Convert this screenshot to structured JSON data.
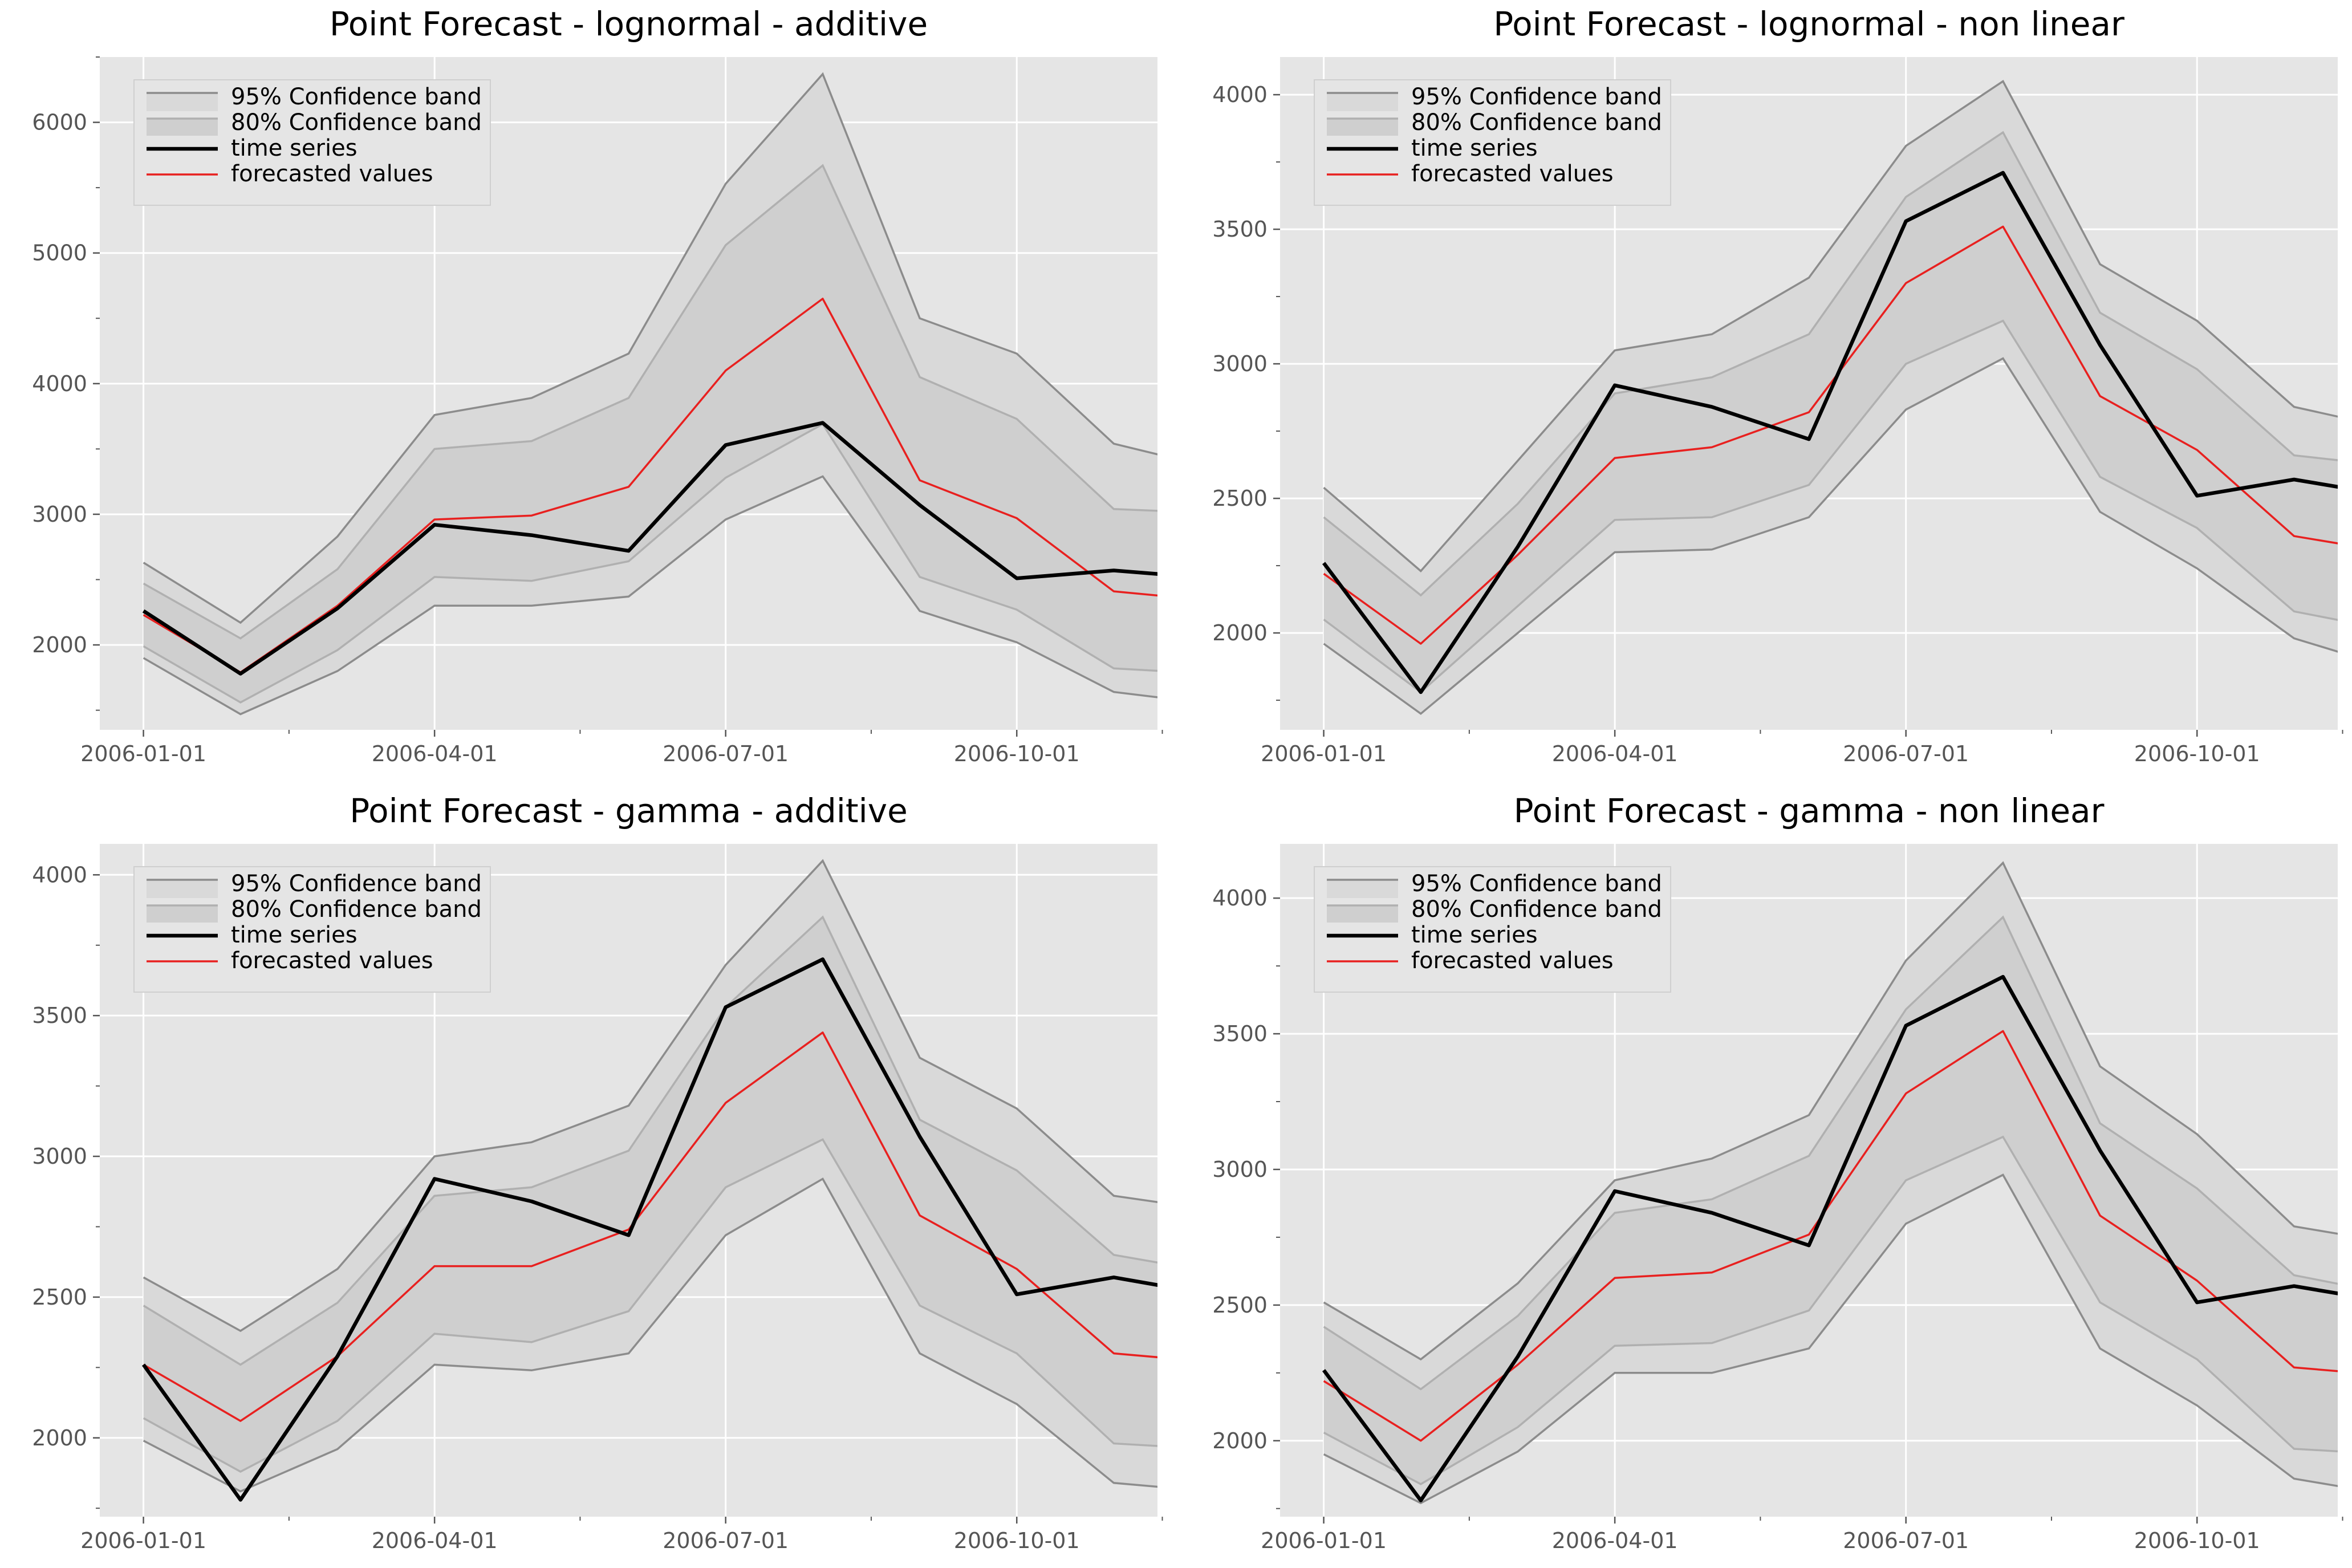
{
  "colors": {
    "panel_bg": "#e5e5e5",
    "grid": "#ffffff",
    "band95_fill": "#d9d9d9",
    "band95_edge": "#8c8c8c",
    "band80_fill": "#cfcfcf",
    "band80_edge": "#b0b0b0",
    "time_series": "#000000",
    "forecast": "#e8201f",
    "tick_text": "#555555"
  },
  "chart_data": [
    {
      "type": "line",
      "title": "Point Forecast - lognormal - additive",
      "x": [
        "2006-01-01",
        "2006-02-01",
        "2006-03-01",
        "2006-04-01",
        "2006-05-01",
        "2006-06-01",
        "2006-07-01",
        "2006-08-01",
        "2006-09-01",
        "2006-10-01",
        "2006-11-01",
        "2006-12-01"
      ],
      "xticks": [
        "2006-01-01",
        "2006-04-01",
        "2006-07-01",
        "2006-10-01"
      ],
      "ylim": [
        1350,
        6500
      ],
      "yticks": [
        2000,
        3000,
        4000,
        5000,
        6000
      ],
      "legend": [
        "95% Confidence band",
        "80% Confidence band",
        "time series",
        "forecasted values"
      ],
      "legend_position": "top-left",
      "grid": true,
      "series": [
        {
          "name": "time series",
          "values": [
            2260,
            1780,
            2280,
            2920,
            2840,
            2720,
            3530,
            3700,
            3070,
            2510,
            2570,
            2510
          ]
        },
        {
          "name": "forecasted values",
          "values": [
            2230,
            1790,
            2300,
            2960,
            2990,
            3210,
            4100,
            4650,
            3260,
            2970,
            2410,
            2340
          ]
        },
        {
          "name": "95% Confidence band",
          "upper": [
            2630,
            2170,
            2830,
            3760,
            3890,
            4230,
            5530,
            6370,
            4500,
            4230,
            3540,
            3360
          ],
          "lower": [
            1900,
            1470,
            1800,
            2300,
            2300,
            2370,
            2960,
            3290,
            2260,
            2020,
            1640,
            1550
          ]
        },
        {
          "name": "80% Confidence band",
          "upper": [
            2470,
            2050,
            2580,
            3500,
            3560,
            3890,
            5060,
            5670,
            4050,
            3730,
            3040,
            3010
          ],
          "lower": [
            1990,
            1560,
            1960,
            2520,
            2490,
            2640,
            3280,
            3690,
            2520,
            2270,
            1820,
            1780
          ]
        }
      ]
    },
    {
      "type": "line",
      "title": "Point Forecast - lognormal - non linear",
      "x": [
        "2006-01-01",
        "2006-02-01",
        "2006-03-01",
        "2006-04-01",
        "2006-05-01",
        "2006-06-01",
        "2006-07-01",
        "2006-08-01",
        "2006-09-01",
        "2006-10-01",
        "2006-11-01",
        "2006-12-01"
      ],
      "xticks": [
        "2006-01-01",
        "2006-04-01",
        "2006-07-01",
        "2006-10-01"
      ],
      "ylim": [
        1640,
        4140
      ],
      "yticks": [
        2000,
        2500,
        3000,
        3500,
        4000
      ],
      "legend": [
        "95% Confidence band",
        "80% Confidence band",
        "time series",
        "forecasted values"
      ],
      "legend_position": "top-left",
      "grid": true,
      "series": [
        {
          "name": "time series",
          "values": [
            2260,
            1780,
            2320,
            2920,
            2840,
            2720,
            3530,
            3710,
            3070,
            2510,
            2570,
            2510
          ]
        },
        {
          "name": "forecasted values",
          "values": [
            2220,
            1960,
            2290,
            2650,
            2690,
            2820,
            3300,
            3510,
            2880,
            2680,
            2360,
            2300
          ]
        },
        {
          "name": "95% Confidence band",
          "upper": [
            2540,
            2230,
            2640,
            3050,
            3110,
            3320,
            3810,
            4050,
            3370,
            3160,
            2840,
            2760
          ],
          "lower": [
            1960,
            1700,
            2000,
            2300,
            2310,
            2430,
            2830,
            3020,
            2450,
            2240,
            1980,
            1870
          ]
        },
        {
          "name": "80% Confidence band",
          "upper": [
            2430,
            2140,
            2480,
            2890,
            2950,
            3110,
            3620,
            3860,
            3190,
            2980,
            2660,
            2620
          ],
          "lower": [
            2050,
            1780,
            2100,
            2420,
            2430,
            2550,
            3000,
            3160,
            2580,
            2390,
            2080,
            2010
          ]
        }
      ]
    },
    {
      "type": "line",
      "title": "Point Forecast - gamma - additive",
      "x": [
        "2006-01-01",
        "2006-02-01",
        "2006-03-01",
        "2006-04-01",
        "2006-05-01",
        "2006-06-01",
        "2006-07-01",
        "2006-08-01",
        "2006-09-01",
        "2006-10-01",
        "2006-11-01",
        "2006-12-01"
      ],
      "xticks": [
        "2006-01-01",
        "2006-04-01",
        "2006-07-01",
        "2006-10-01"
      ],
      "ylim": [
        1720,
        4110
      ],
      "yticks": [
        2000,
        2500,
        3000,
        3500,
        4000
      ],
      "legend": [
        "95% Confidence band",
        "80% Confidence band",
        "time series",
        "forecasted values"
      ],
      "legend_position": "top-left",
      "grid": true,
      "series": [
        {
          "name": "time series",
          "values": [
            2260,
            1780,
            2290,
            2920,
            2840,
            2720,
            3530,
            3700,
            3070,
            2510,
            2570,
            2510
          ]
        },
        {
          "name": "forecasted values",
          "values": [
            2260,
            2060,
            2290,
            2610,
            2610,
            2740,
            3190,
            3440,
            2790,
            2600,
            2300,
            2270
          ]
        },
        {
          "name": "95% Confidence band",
          "upper": [
            2570,
            2380,
            2600,
            3000,
            3050,
            3180,
            3680,
            4050,
            3350,
            3170,
            2860,
            2810
          ],
          "lower": [
            1990,
            1810,
            1960,
            2260,
            2240,
            2300,
            2720,
            2920,
            2300,
            2120,
            1840,
            1810
          ]
        },
        {
          "name": "80% Confidence band",
          "upper": [
            2470,
            2260,
            2480,
            2860,
            2890,
            3020,
            3530,
            3850,
            3130,
            2950,
            2650,
            2590
          ],
          "lower": [
            2070,
            1880,
            2060,
            2370,
            2340,
            2450,
            2890,
            3060,
            2470,
            2300,
            1980,
            1960
          ]
        }
      ]
    },
    {
      "type": "line",
      "title": "Point Forecast - gamma - non linear",
      "x": [
        "2006-01-01",
        "2006-02-01",
        "2006-03-01",
        "2006-04-01",
        "2006-05-01",
        "2006-06-01",
        "2006-07-01",
        "2006-08-01",
        "2006-09-01",
        "2006-10-01",
        "2006-11-01",
        "2006-12-01"
      ],
      "xticks": [
        "2006-01-01",
        "2006-04-01",
        "2006-07-01",
        "2006-10-01"
      ],
      "ylim": [
        1720,
        4200
      ],
      "yticks": [
        2000,
        2500,
        3000,
        3500,
        4000
      ],
      "legend": [
        "95% Confidence band",
        "80% Confidence band",
        "time series",
        "forecasted values"
      ],
      "legend_position": "top-left",
      "grid": true,
      "series": [
        {
          "name": "time series",
          "values": [
            2260,
            1780,
            2310,
            2920,
            2840,
            2720,
            3530,
            3710,
            3070,
            2510,
            2570,
            2510
          ]
        },
        {
          "name": "forecasted values",
          "values": [
            2220,
            2000,
            2280,
            2600,
            2620,
            2760,
            3280,
            3510,
            2830,
            2590,
            2270,
            2240
          ]
        },
        {
          "name": "95% Confidence band",
          "upper": [
            2510,
            2300,
            2580,
            2960,
            3040,
            3200,
            3770,
            4130,
            3380,
            3130,
            2790,
            2730
          ],
          "lower": [
            1950,
            1770,
            1960,
            2250,
            2250,
            2340,
            2800,
            2980,
            2340,
            2130,
            1860,
            1800
          ]
        },
        {
          "name": "80% Confidence band",
          "upper": [
            2420,
            2190,
            2460,
            2840,
            2890,
            3050,
            3590,
            3930,
            3170,
            2930,
            2610,
            2540
          ],
          "lower": [
            2030,
            1840,
            2050,
            2350,
            2360,
            2480,
            2960,
            3120,
            2510,
            2300,
            1970,
            1950
          ]
        }
      ]
    }
  ]
}
